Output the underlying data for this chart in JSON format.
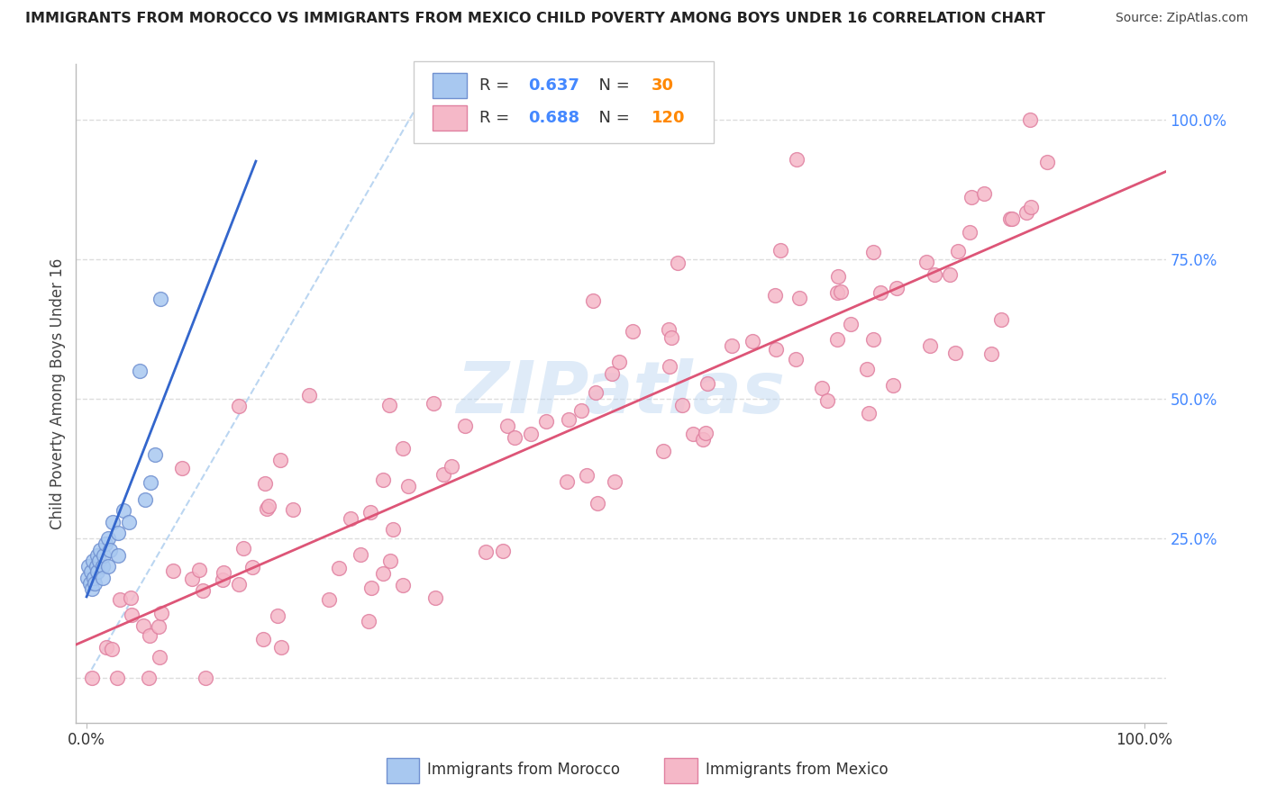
{
  "title": "IMMIGRANTS FROM MOROCCO VS IMMIGRANTS FROM MEXICO CHILD POVERTY AMONG BOYS UNDER 16 CORRELATION CHART",
  "source": "Source: ZipAtlas.com",
  "ylabel": "Child Poverty Among Boys Under 16",
  "background_color": "#ffffff",
  "watermark_text": "ZIPatlas",
  "morocco_fill": "#a8c8f0",
  "mexico_fill": "#f5b8c8",
  "morocco_edge": "#7090d0",
  "mexico_edge": "#e080a0",
  "trendline_morocco_color": "#3366cc",
  "trendline_mexico_color": "#dd5577",
  "diag_color": "#aaccee",
  "grid_color": "#dddddd",
  "right_tick_color": "#4488ff",
  "R_morocco": 0.637,
  "N_morocco": 30,
  "R_mexico": 0.688,
  "N_mexico": 120,
  "legend_label_morocco": "Immigrants from Morocco",
  "legend_label_mexico": "Immigrants from Mexico",
  "R_color": "#4488ff",
  "N_color": "#ff8800"
}
